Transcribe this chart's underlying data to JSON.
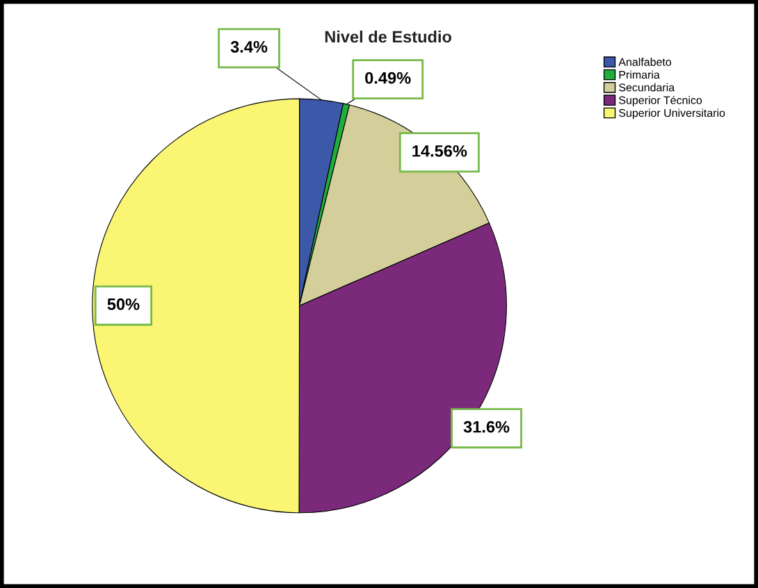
{
  "chart_data": {
    "type": "pie",
    "title": "Nivel de Estudio",
    "categories": [
      "Analfabeto",
      "Primaria",
      "Secundaria",
      "Superior Técnico",
      "Superior Universitario"
    ],
    "values": [
      3.4,
      0.49,
      14.56,
      31.6,
      50
    ],
    "colors": [
      "#3c58a8",
      "#1fae3c",
      "#d4cf9a",
      "#7b2a7b",
      "#faf573"
    ],
    "value_labels": [
      "3.4%",
      "0.49%",
      "14.56%",
      "31.6%",
      "50%"
    ],
    "legend": "top right"
  }
}
